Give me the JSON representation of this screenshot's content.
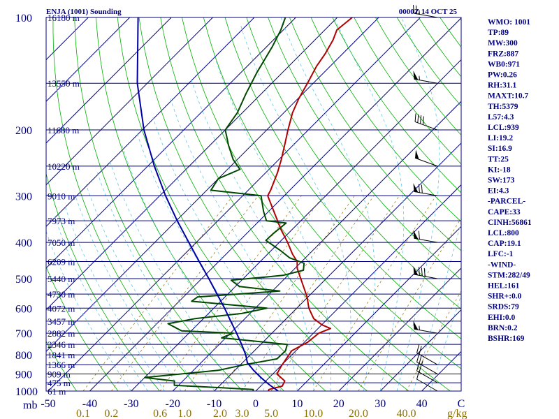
{
  "chart_data": {
    "type": "line",
    "title": "ENJA (1001) Sounding",
    "time": "0000Z 14 OCT 25",
    "pressure_unit": "mb",
    "mixing_ratio_unit": "g/kg",
    "temperature_ticks": [
      "-50",
      "-40",
      "-30",
      "-20",
      "-10",
      "0",
      "10",
      "20",
      "30",
      "40",
      "C"
    ],
    "temperature_tick_values": [
      -50,
      -40,
      -30,
      -20,
      -10,
      0,
      10,
      20,
      30,
      40
    ],
    "pressure_levels": [
      100,
      200,
      300,
      400,
      500,
      600,
      700,
      800,
      900,
      1000
    ],
    "height_labels": [
      {
        "p": 100,
        "text": "16180 m"
      },
      {
        "p": 150,
        "text": "13550 m"
      },
      {
        "p": 200,
        "text": "11680 m"
      },
      {
        "p": 250,
        "text": "10220 m"
      },
      {
        "p": 300,
        "text": "9010 m"
      },
      {
        "p": 350,
        "text": "7973 m"
      },
      {
        "p": 400,
        "text": "7050 m"
      },
      {
        "p": 450,
        "text": "6209 m"
      },
      {
        "p": 500,
        "text": "5440 m"
      },
      {
        "p": 550,
        "text": "4730 m"
      },
      {
        "p": 600,
        "text": "4072 m"
      },
      {
        "p": 650,
        "text": "3457 m"
      },
      {
        "p": 700,
        "text": "2882 m"
      },
      {
        "p": 750,
        "text": "2346 m"
      },
      {
        "p": 800,
        "text": "1841 m"
      },
      {
        "p": 850,
        "text": "1366 m"
      },
      {
        "p": 900,
        "text": "909 m"
      },
      {
        "p": 950,
        "text": "475 m"
      },
      {
        "p": 1000,
        "text": "61 m"
      }
    ],
    "mixing_ratio_labels": [
      {
        "value": 0.1,
        "text": "0.1"
      },
      {
        "value": 0.2,
        "text": "0.2"
      },
      {
        "value": 0.6,
        "text": "0.6"
      },
      {
        "value": 1.0,
        "text": "1.0"
      },
      {
        "value": 2.0,
        "text": "2.0"
      },
      {
        "value": 3.0,
        "text": "3.0"
      },
      {
        "value": 5.0,
        "text": "5.0"
      },
      {
        "value": 10.0,
        "text": "10.0"
      },
      {
        "value": 20.0,
        "text": "20.0"
      },
      {
        "value": 40.0,
        "text": "40.0"
      }
    ],
    "series": [
      {
        "name": "Temperature",
        "color": "#b00000",
        "points": [
          {
            "p": 1000,
            "t": 3.0
          },
          {
            "p": 990,
            "t": 2.8
          },
          {
            "p": 970,
            "t": 5.2
          },
          {
            "p": 940,
            "t": 4.6
          },
          {
            "p": 900,
            "t": 1.0
          },
          {
            "p": 860,
            "t": 0.2
          },
          {
            "p": 820,
            "t": -0.4
          },
          {
            "p": 780,
            "t": -1.0
          },
          {
            "p": 740,
            "t": 0.8
          },
          {
            "p": 700,
            "t": 1.3
          },
          {
            "p": 680,
            "t": 3.0
          },
          {
            "p": 665,
            "t": 0.1
          },
          {
            "p": 640,
            "t": -3.4
          },
          {
            "p": 600,
            "t": -7.1
          },
          {
            "p": 560,
            "t": -10.2
          },
          {
            "p": 510,
            "t": -15.1
          },
          {
            "p": 470,
            "t": -19.4
          },
          {
            "p": 450,
            "t": -21.1
          },
          {
            "p": 430,
            "t": -24.0
          },
          {
            "p": 400,
            "t": -28.0
          },
          {
            "p": 370,
            "t": -32.6
          },
          {
            "p": 340,
            "t": -37.2
          },
          {
            "p": 300,
            "t": -44.0
          },
          {
            "p": 290,
            "t": -44.6
          },
          {
            "p": 260,
            "t": -47.2
          },
          {
            "p": 240,
            "t": -49.4
          },
          {
            "p": 220,
            "t": -52.0
          },
          {
            "p": 200,
            "t": -54.9
          },
          {
            "p": 180,
            "t": -57.9
          },
          {
            "p": 165,
            "t": -59.8
          },
          {
            "p": 150,
            "t": -61.4
          },
          {
            "p": 135,
            "t": -63.3
          },
          {
            "p": 125,
            "t": -64.2
          },
          {
            "p": 115,
            "t": -65.6
          },
          {
            "p": 108,
            "t": -67.1
          },
          {
            "p": 100,
            "t": -66.4
          }
        ]
      },
      {
        "name": "Dewpoint",
        "color": "#004800",
        "points": [
          {
            "p": 1000,
            "t": -0.6
          },
          {
            "p": 990,
            "t": -1.0
          },
          {
            "p": 980,
            "t": -9.0
          },
          {
            "p": 965,
            "t": -21.0
          },
          {
            "p": 940,
            "t": -22.0
          },
          {
            "p": 920,
            "t": -30.0
          },
          {
            "p": 880,
            "t": -14.0
          },
          {
            "p": 850,
            "t": -9.0
          },
          {
            "p": 820,
            "t": -2.6
          },
          {
            "p": 780,
            "t": -2.5
          },
          {
            "p": 750,
            "t": -3.6
          },
          {
            "p": 720,
            "t": -21.0
          },
          {
            "p": 700,
            "t": -19.3
          },
          {
            "p": 690,
            "t": -32.3
          },
          {
            "p": 660,
            "t": -37.3
          },
          {
            "p": 640,
            "t": -32.0
          },
          {
            "p": 620,
            "t": -22.0
          },
          {
            "p": 600,
            "t": -17.2
          },
          {
            "p": 575,
            "t": -37.0
          },
          {
            "p": 560,
            "t": -36.6
          },
          {
            "p": 540,
            "t": -18.2
          },
          {
            "p": 525,
            "t": -29.0
          },
          {
            "p": 505,
            "t": -32.5
          },
          {
            "p": 490,
            "t": -21.2
          },
          {
            "p": 475,
            "t": -17.5
          },
          {
            "p": 455,
            "t": -19.0
          },
          {
            "p": 440,
            "t": -23.8
          },
          {
            "p": 420,
            "t": -27.9
          },
          {
            "p": 395,
            "t": -33.7
          },
          {
            "p": 380,
            "t": -33.6
          },
          {
            "p": 355,
            "t": -33.0
          },
          {
            "p": 350,
            "t": -38.3
          },
          {
            "p": 330,
            "t": -41.3
          },
          {
            "p": 300,
            "t": -45.6
          },
          {
            "p": 290,
            "t": -59.0
          },
          {
            "p": 270,
            "t": -60.0
          },
          {
            "p": 255,
            "t": -57.0
          },
          {
            "p": 240,
            "t": -61.0
          },
          {
            "p": 220,
            "t": -65.5
          },
          {
            "p": 200,
            "t": -70.0
          },
          {
            "p": 180,
            "t": -71.2
          },
          {
            "p": 160,
            "t": -73.7
          },
          {
            "p": 140,
            "t": -76.2
          },
          {
            "p": 120,
            "t": -78.6
          },
          {
            "p": 108,
            "t": -80.6
          },
          {
            "p": 100,
            "t": -82.5
          }
        ]
      },
      {
        "name": "Parcel",
        "color": "#0000a0",
        "points": [
          {
            "p": 1000,
            "t": 5.4
          },
          {
            "p": 960,
            "t": 1.6
          },
          {
            "p": 920,
            "t": -2.0
          },
          {
            "p": 880,
            "t": -5.5
          },
          {
            "p": 840,
            "t": -8.8
          },
          {
            "p": 800,
            "t": -11.1
          },
          {
            "p": 750,
            "t": -14.6
          },
          {
            "p": 700,
            "t": -18.5
          },
          {
            "p": 650,
            "t": -22.8
          },
          {
            "p": 600,
            "t": -27.4
          },
          {
            "p": 550,
            "t": -32.6
          },
          {
            "p": 500,
            "t": -38.3
          },
          {
            "p": 450,
            "t": -44.7
          },
          {
            "p": 400,
            "t": -51.8
          },
          {
            "p": 350,
            "t": -59.8
          },
          {
            "p": 300,
            "t": -68.6
          },
          {
            "p": 250,
            "t": -78.4
          },
          {
            "p": 200,
            "t": -89.6
          },
          {
            "p": 150,
            "t": -102.4
          },
          {
            "p": 100,
            "t": -118.0
          }
        ]
      }
    ],
    "wind_barbs": [
      {
        "p": 1000,
        "dir": 300,
        "spd": 10
      },
      {
        "p": 950,
        "dir": 300,
        "spd": 20
      },
      {
        "p": 900,
        "dir": 300,
        "spd": 25
      },
      {
        "p": 850,
        "dir": 300,
        "spd": 20
      },
      {
        "p": 700,
        "dir": 280,
        "spd": 55
      },
      {
        "p": 500,
        "dir": 280,
        "spd": 80
      },
      {
        "p": 400,
        "dir": 280,
        "spd": 60
      },
      {
        "p": 300,
        "dir": 280,
        "spd": 70
      },
      {
        "p": 250,
        "dir": 290,
        "spd": 50
      },
      {
        "p": 200,
        "dir": 290,
        "spd": 40
      },
      {
        "p": 150,
        "dir": 280,
        "spd": 55
      },
      {
        "p": 100,
        "dir": 280,
        "spd": 25
      }
    ],
    "indices": [
      "WMO: 1001",
      "TP:89",
      "MW:300",
      "FRZ:887",
      "WB0:971",
      "PW:0.26",
      "RH:31.1",
      "MAXT:10.7",
      "TH:5379",
      "L57:4.3",
      "LCL:939",
      "LI:19.2",
      "SI:16.9",
      "TT:25",
      "KI:-18",
      "SW:173",
      "EI:4.3",
      "-PARCEL-",
      "CAPE:33",
      "CINH:56861",
      "LCL:800",
      "CAP:19.1",
      "LFC:-1",
      "-WIND-",
      "STM:282/49",
      "HEL:161",
      "SHR+:0.0",
      "SRDS:79",
      "EHI:0.0",
      "BRN:0.2",
      "BSHR:169"
    ]
  }
}
